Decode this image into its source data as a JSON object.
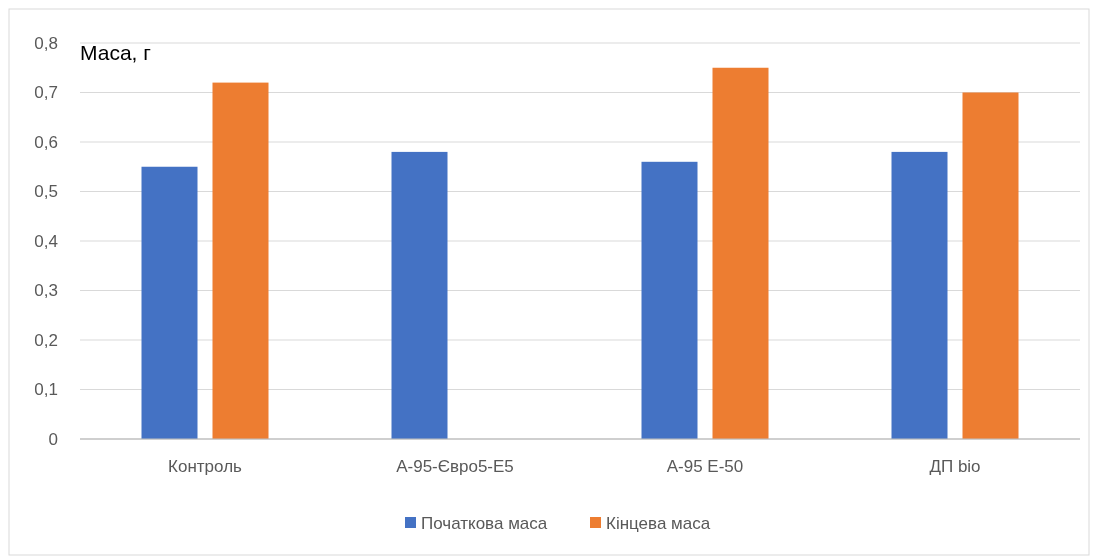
{
  "chart_data": {
    "type": "bar",
    "ylabel": "Маса, г",
    "categories": [
      "Контроль",
      "А-95-Євро5-Е5",
      "А-95 Е-50",
      "ДП bio"
    ],
    "series": [
      {
        "name": "Початкова маса",
        "color": "#4472c4",
        "values": [
          0.55,
          0.58,
          0.56,
          0.58
        ]
      },
      {
        "name": "Кінцева маса",
        "color": "#ed7d31",
        "values": [
          0.72,
          null,
          0.75,
          0.7
        ]
      }
    ],
    "ylim": [
      0,
      0.8
    ],
    "yticks": [
      {
        "value": 0,
        "label": "0"
      },
      {
        "value": 0.1,
        "label": "0,1"
      },
      {
        "value": 0.2,
        "label": "0,2"
      },
      {
        "value": 0.3,
        "label": "0,3"
      },
      {
        "value": 0.4,
        "label": "0,4"
      },
      {
        "value": 0.5,
        "label": "0,5"
      },
      {
        "value": 0.6,
        "label": "0,6"
      },
      {
        "value": 0.7,
        "label": "0,7"
      },
      {
        "value": 0.8,
        "label": "0,8"
      }
    ],
    "grid": "y",
    "legend": "bottom"
  }
}
